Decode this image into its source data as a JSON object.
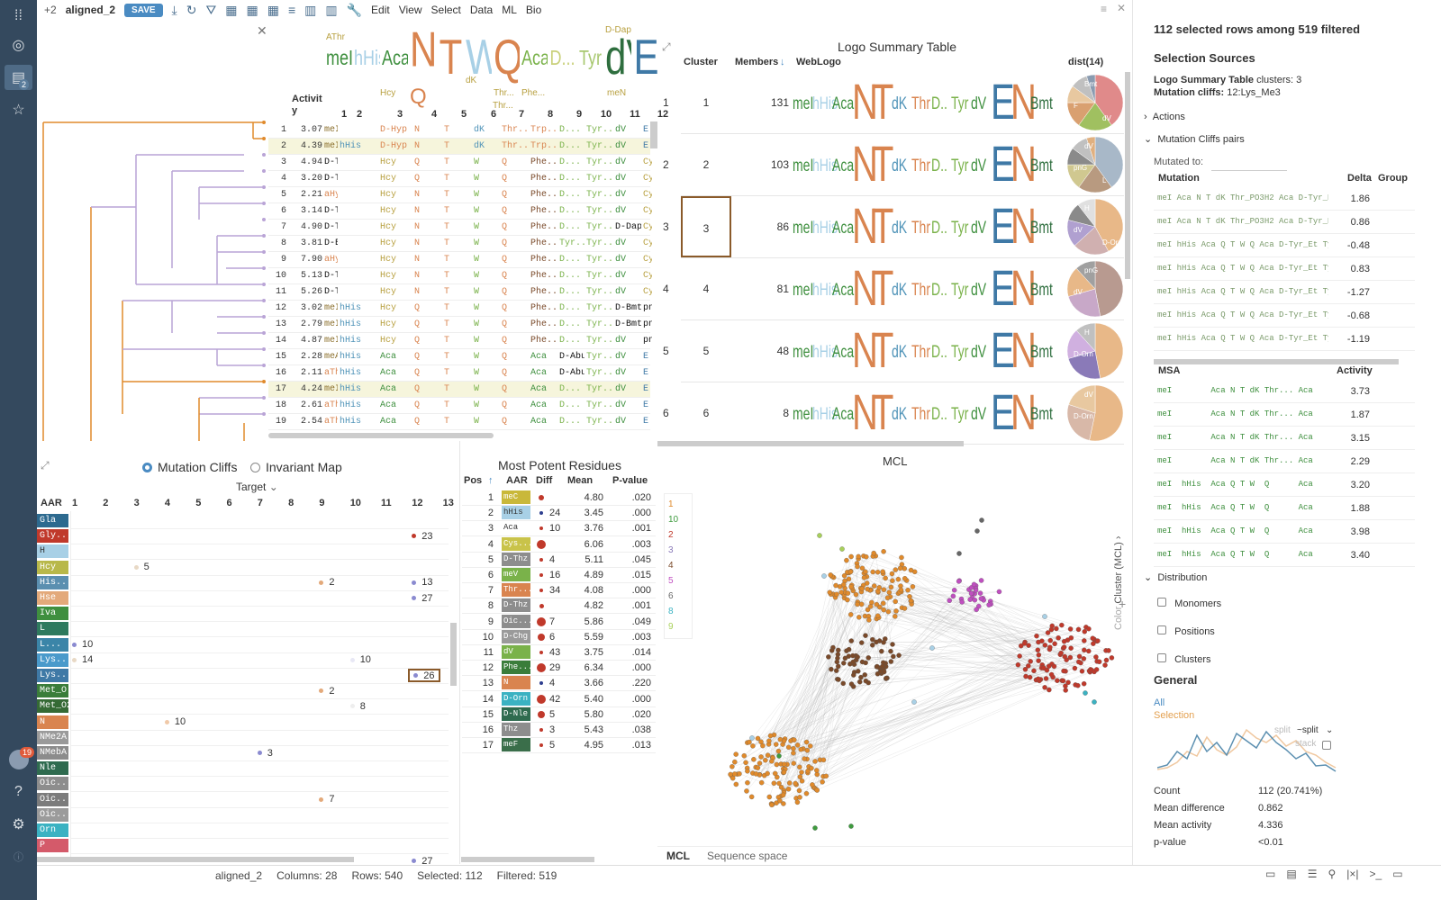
{
  "toolbar": {
    "extra_tabs": "+2",
    "table_name": "aligned_2",
    "save_label": "SAVE",
    "menus": [
      "Edit",
      "View",
      "Select",
      "Data",
      "ML",
      "Bio"
    ]
  },
  "sidebar": {
    "badge_count": "2",
    "user_badge": "19"
  },
  "grid": {
    "activity_header": "Activit y",
    "position_headers": [
      "1",
      "2",
      "3",
      "4",
      "5",
      "6",
      "7",
      "8",
      "9",
      "10",
      "11",
      "12"
    ],
    "rows": [
      {
        "n": "1",
        "act": "3.07",
        "c": [
          "meI",
          "",
          "D-Hyp",
          "N",
          "T",
          "dK",
          "Thr...",
          "Trp...",
          "D...",
          "Tyr...",
          "dV",
          "E"
        ]
      },
      {
        "n": "2",
        "act": "4.39",
        "c": [
          "meI",
          "hHis",
          "D-Hyp",
          "N",
          "T",
          "dK",
          "Thr...",
          "Trp...",
          "D...",
          "Tyr...",
          "dV",
          "E"
        ]
      },
      {
        "n": "3",
        "act": "4.94",
        "c": [
          "D-Tic",
          "",
          "Hcy",
          "Q",
          "T",
          "W",
          "Q",
          "Phe...",
          "D...",
          "Tyr...",
          "dV",
          "Cys..."
        ]
      },
      {
        "n": "4",
        "act": "3.20",
        "c": [
          "D-Tic",
          "",
          "Hcy",
          "Q",
          "T",
          "W",
          "Q",
          "Phe...",
          "D...",
          "Tyr...",
          "dV",
          "Cys..."
        ]
      },
      {
        "n": "5",
        "act": "2.21",
        "c": [
          "aHyp",
          "",
          "Hcy",
          "N",
          "T",
          "W",
          "Q",
          "Phe...",
          "D...",
          "Tyr...",
          "dV",
          "Cys..."
        ]
      },
      {
        "n": "6",
        "act": "3.14",
        "c": [
          "D-Tic",
          "",
          "Hcy",
          "N",
          "T",
          "W",
          "Q",
          "Phe...",
          "D...",
          "Tyr...",
          "dV",
          "Cys..."
        ]
      },
      {
        "n": "7",
        "act": "4.90",
        "c": [
          "D-Tic",
          "",
          "Hcy",
          "N",
          "T",
          "W",
          "Q",
          "Phe...",
          "D...",
          "Tyr...",
          "D-Dap",
          "Cys..."
        ]
      },
      {
        "n": "8",
        "act": "3.81",
        "c": [
          "D-Bmt",
          "",
          "Hcy",
          "N",
          "T",
          "W",
          "Q",
          "Phe...",
          "Tyr...",
          "Tyr...",
          "dV",
          "Cys..."
        ]
      },
      {
        "n": "9",
        "act": "7.90",
        "c": [
          "aHyp",
          "",
          "Hcy",
          "N",
          "T",
          "W",
          "Q",
          "Phe...",
          "D...",
          "Tyr...",
          "dV",
          "Cys..."
        ]
      },
      {
        "n": "10",
        "act": "5.13",
        "c": [
          "D-Tic",
          "",
          "Hcy",
          "N",
          "T",
          "W",
          "Q",
          "Phe...",
          "D...",
          "Tyr...",
          "dV",
          "Cys..."
        ]
      },
      {
        "n": "11",
        "act": "5.26",
        "c": [
          "D-Tic",
          "",
          "Hcy",
          "N",
          "T",
          "W",
          "Q",
          "Phe...",
          "D...",
          "Tyr...",
          "dV",
          "Cys..."
        ]
      },
      {
        "n": "12",
        "act": "3.02",
        "c": [
          "meI",
          "hHis",
          "Hcy",
          "Q",
          "T",
          "W",
          "Q",
          "Phe...",
          "D...",
          "Tyr...",
          "D-Bmt",
          "pnG"
        ]
      },
      {
        "n": "13",
        "act": "2.79",
        "c": [
          "meI",
          "hHis",
          "Hcy",
          "Q",
          "T",
          "W",
          "Q",
          "Phe...",
          "D...",
          "Tyr...",
          "D-Bmt",
          "pnG"
        ]
      },
      {
        "n": "14",
        "act": "4.87",
        "c": [
          "meI",
          "hHis",
          "Hcy",
          "Q",
          "T",
          "W",
          "Q",
          "Phe...",
          "D...",
          "Tyr...",
          "dV",
          "pnG"
        ]
      },
      {
        "n": "15",
        "act": "2.28",
        "c": [
          "meA",
          "hHis",
          "Aca",
          "Q",
          "T",
          "W",
          "Q",
          "Aca",
          "D-Abu",
          "Tyr...",
          "dV",
          "E"
        ]
      },
      {
        "n": "16",
        "act": "2.11",
        "c": [
          "aThr",
          "hHis",
          "Aca",
          "Q",
          "T",
          "W",
          "Q",
          "Aca",
          "D-Abu",
          "Tyr...",
          "dV",
          "E"
        ]
      },
      {
        "n": "17",
        "act": "4.24",
        "c": [
          "meI",
          "hHis",
          "Aca",
          "Q",
          "T",
          "W",
          "Q",
          "Aca",
          "D...",
          "Tyr...",
          "dV",
          "E"
        ]
      },
      {
        "n": "18",
        "act": "2.61",
        "c": [
          "aThr",
          "hHis",
          "Aca",
          "Q",
          "T",
          "W",
          "Q",
          "Aca",
          "D...",
          "Tyr...",
          "dV",
          "E"
        ]
      },
      {
        "n": "19",
        "act": "2.54",
        "c": [
          "aThr",
          "hHis",
          "Aca",
          "Q",
          "T",
          "W",
          "Q",
          "Aca",
          "D...",
          "Tyr...",
          "dV",
          "E"
        ]
      }
    ],
    "logo_letters": [
      "meI",
      "hHis",
      "Aca",
      "N",
      "T",
      "W",
      "Q",
      "Aca",
      "D...",
      "Tyr",
      "dV",
      "E"
    ],
    "logo_extras": [
      "Hcy",
      "Q",
      "dK",
      "Thr...",
      "Phe...",
      "meN",
      "Thr...",
      "D-Dap",
      "AThr"
    ]
  },
  "logo_summary": {
    "title": "Logo Summary Table",
    "headers": {
      "cluster": "Cluster",
      "members": "Members",
      "weblogo": "WebLogo",
      "dist": "dist(14)"
    },
    "rows": [
      {
        "idx": "1",
        "cluster": "1",
        "members": "131",
        "pie": [
          "Bmt",
          "F",
          "dV"
        ]
      },
      {
        "idx": "2",
        "cluster": "2",
        "members": "103",
        "pie": [
          "dV",
          "pnG",
          "L"
        ]
      },
      {
        "idx": "3",
        "cluster": "3",
        "members": "86",
        "pie": [
          "H",
          "dV",
          "D-Orn"
        ]
      },
      {
        "idx": "4",
        "cluster": "4",
        "members": "81",
        "pie": [
          "pnG",
          "dV"
        ]
      },
      {
        "idx": "5",
        "cluster": "5",
        "members": "48",
        "pie": [
          "H",
          "D-Orn"
        ]
      },
      {
        "idx": "6",
        "cluster": "6",
        "members": "8",
        "pie": [
          "dV",
          "D-Orn"
        ]
      }
    ]
  },
  "mutation_cliffs": {
    "radio_cliffs": "Mutation Cliffs",
    "radio_invariant": "Invariant Map",
    "target_label": "Target",
    "aar_header": "AAR",
    "positions": [
      "1",
      "2",
      "3",
      "4",
      "5",
      "6",
      "7",
      "8",
      "9",
      "10",
      "11",
      "12",
      "13"
    ],
    "aars": [
      {
        "name": "Gla",
        "color": "#2d6a8f"
      },
      {
        "name": "Gly...",
        "color": "#c0392b"
      },
      {
        "name": "H",
        "color": "#a8d0e6"
      },
      {
        "name": "Hcy",
        "color": "#b8b84a"
      },
      {
        "name": "His...",
        "color": "#5b8fb0"
      },
      {
        "name": "Hse",
        "color": "#e3a97a"
      },
      {
        "name": "Iva",
        "color": "#3f8f3f"
      },
      {
        "name": "L",
        "color": "#2e7a5e"
      },
      {
        "name": "L...",
        "color": "#3b85a8"
      },
      {
        "name": "Lys...",
        "color": "#4a9acb"
      },
      {
        "name": "Lys...",
        "color": "#3f79a6"
      },
      {
        "name": "Met_O",
        "color": "#3a7d3a"
      },
      {
        "name": "Met_O2",
        "color": "#356a35"
      },
      {
        "name": "N",
        "color": "#d9844f"
      },
      {
        "name": "NMe2A...",
        "color": "#9a9a9a"
      },
      {
        "name": "NMebA...",
        "color": "#8c8c8c"
      },
      {
        "name": "Nle",
        "color": "#2f6b4f"
      },
      {
        "name": "Oic...",
        "color": "#8d8d8d"
      },
      {
        "name": "Oic...",
        "color": "#7c7c7c"
      },
      {
        "name": "Oic...",
        "color": "#9b9b9b"
      },
      {
        "name": "Orn",
        "color": "#3bb2c2"
      },
      {
        "name": "P",
        "color": "#d45a6a"
      }
    ],
    "cells": [
      {
        "row": 1,
        "col": 12,
        "val": "23",
        "color": "#c0392b"
      },
      {
        "row": 3,
        "col": 3,
        "val": "5",
        "color": "#e8d9c5"
      },
      {
        "row": 4,
        "col": 9,
        "val": "2",
        "color": "#e3a97a"
      },
      {
        "row": 4,
        "col": 12,
        "val": "13",
        "color": "#8a8ad0"
      },
      {
        "row": 5,
        "col": 12,
        "val": "27",
        "color": "#8a8ad0"
      },
      {
        "row": 8,
        "col": 1,
        "val": "10",
        "color": "#8a8ad0"
      },
      {
        "row": 9,
        "col": 1,
        "val": "14",
        "color": "#e8d9c5"
      },
      {
        "row": 9,
        "col": 10,
        "val": "10",
        "color": "#e8e8f5"
      },
      {
        "row": 10,
        "col": 12,
        "val": "26",
        "color": "#8a8ad0"
      },
      {
        "row": 11,
        "col": 9,
        "val": "2",
        "color": "#e3a97a"
      },
      {
        "row": 12,
        "col": 10,
        "val": "8",
        "color": "#eee"
      },
      {
        "row": 13,
        "col": 4,
        "val": "10",
        "color": "#f0c9a8"
      },
      {
        "row": 15,
        "col": 7,
        "val": "3",
        "color": "#8a8ad0"
      },
      {
        "row": 18,
        "col": 9,
        "val": "7",
        "color": "#e3a97a"
      },
      {
        "row": 22,
        "col": 12,
        "val": "27",
        "color": "#8a8ad0"
      }
    ]
  },
  "most_potent": {
    "title": "Most Potent Residues",
    "headers": {
      "pos": "Pos",
      "aar": "AAR",
      "diff": "Diff",
      "mean": "Mean",
      "pval": "P-value"
    },
    "rows": [
      {
        "pos": "1",
        "aar": "meC",
        "aarColor": "#c9b83a",
        "dot": "#c0392b",
        "dotSize": 6,
        "diff": "",
        "mean": "4.80",
        "pval": ".020"
      },
      {
        "pos": "2",
        "aar": "hHis",
        "aarColor": "#a8d0e6",
        "dot": "#2d3e8f",
        "dotSize": 4,
        "diff": "24",
        "mean": "3.45",
        "pval": ".000"
      },
      {
        "pos": "3",
        "aar": "Aca",
        "aarColor": "#ffffff",
        "dot": "#c0392b",
        "dotSize": 4,
        "diff": "10",
        "mean": "3.76",
        "pval": ".001"
      },
      {
        "pos": "4",
        "aar": "Cys...",
        "aarColor": "#c9c34a",
        "dot": "#c0392b",
        "dotSize": 10,
        "diff": "",
        "mean": "6.06",
        "pval": ".003"
      },
      {
        "pos": "5",
        "aar": "D-Thz",
        "aarColor": "#8d8d8d",
        "dot": "#c0392b",
        "dotSize": 4,
        "diff": "4",
        "mean": "5.11",
        "pval": ".045"
      },
      {
        "pos": "6",
        "aar": "meV",
        "aarColor": "#7ab24a",
        "dot": "#c0392b",
        "dotSize": 4,
        "diff": "16",
        "mean": "4.89",
        "pval": ".015"
      },
      {
        "pos": "7",
        "aar": "Thr...",
        "aarColor": "#d9844f",
        "dot": "#c0392b",
        "dotSize": 4,
        "diff": "34",
        "mean": "4.08",
        "pval": ".000"
      },
      {
        "pos": "8",
        "aar": "D-Thz",
        "aarColor": "#8d8d8d",
        "dot": "#c0392b",
        "dotSize": 5,
        "diff": "",
        "mean": "4.82",
        "pval": ".001"
      },
      {
        "pos": "9",
        "aar": "Oic...",
        "aarColor": "#8d8d8d",
        "dot": "#c0392b",
        "dotSize": 10,
        "diff": "7",
        "mean": "5.86",
        "pval": ".049"
      },
      {
        "pos": "10",
        "aar": "D-Chg",
        "aarColor": "#9a9a9a",
        "dot": "#c0392b",
        "dotSize": 8,
        "diff": "6",
        "mean": "5.59",
        "pval": ".003"
      },
      {
        "pos": "11",
        "aar": "dV",
        "aarColor": "#7ab24a",
        "dot": "#c0392b",
        "dotSize": 4,
        "diff": "43",
        "mean": "3.75",
        "pval": ".014"
      },
      {
        "pos": "12",
        "aar": "Phe...",
        "aarColor": "#3a7d3a",
        "dot": "#c0392b",
        "dotSize": 10,
        "diff": "29",
        "mean": "6.34",
        "pval": ".000"
      },
      {
        "pos": "13",
        "aar": "N",
        "aarColor": "#d9844f",
        "dot": "#2d3e8f",
        "dotSize": 4,
        "diff": "4",
        "mean": "3.66",
        "pval": ".220"
      },
      {
        "pos": "14",
        "aar": "D-Orn",
        "aarColor": "#3bb2c2",
        "dot": "#c0392b",
        "dotSize": 10,
        "diff": "42",
        "mean": "5.40",
        "pval": ".000"
      },
      {
        "pos": "15",
        "aar": "D-Nle",
        "aarColor": "#2f6b4f",
        "dot": "#c0392b",
        "dotSize": 8,
        "diff": "5",
        "mean": "5.80",
        "pval": ".020"
      },
      {
        "pos": "16",
        "aar": "Thz",
        "aarColor": "#8d8d8d",
        "dot": "#c0392b",
        "dotSize": 4,
        "diff": "3",
        "mean": "5.43",
        "pval": ".038"
      },
      {
        "pos": "17",
        "aar": "meF",
        "aarColor": "#3a6e4a",
        "dot": "#c0392b",
        "dotSize": 4,
        "diff": "5",
        "mean": "4.95",
        "pval": ".013"
      }
    ]
  },
  "mcl": {
    "title": "MCL",
    "legend": [
      {
        "label": "1",
        "color": "#e08a2b"
      },
      {
        "label": "10",
        "color": "#3e9b3e"
      },
      {
        "label": "2",
        "color": "#c0392b"
      },
      {
        "label": "3",
        "color": "#8a7ab8"
      },
      {
        "label": "4",
        "color": "#7a4a2a"
      },
      {
        "label": "5",
        "color": "#c04fc0"
      },
      {
        "label": "6",
        "color": "#666666"
      },
      {
        "label": "8",
        "color": "#3bb2c2"
      },
      {
        "label": "9",
        "color": "#a8d05a"
      }
    ],
    "color_label": "Color",
    "cluster_label": "Cluster (MCL)",
    "tabs": [
      "MCL",
      "Sequence space"
    ]
  },
  "right_panel": {
    "heading": "112 selected rows among 519 filtered",
    "selection_sources": "Selection Sources",
    "lst_label": "Logo Summary Table",
    "lst_value": "clusters: 3",
    "mc_label": "Mutation cliffs:",
    "mc_value": "12:Lys_Me3",
    "actions": "Actions",
    "pairs_section": "Mutation Cliffs pairs",
    "mutated_to": "Mutated to:",
    "pairs_headers": {
      "mutation": "Mutation",
      "delta": "Delta",
      "group": "Group"
    },
    "pairs": [
      {
        "seq": "meI Aca N T dK Thr_PO3H2 Aca D-Tyr_E",
        "delta": "1.86"
      },
      {
        "seq": "meI Aca N T dK Thr_PO3H2 Aca D-Tyr_E",
        "delta": "0.86"
      },
      {
        "seq": "meI hHis Aca Q T W Q Aca D-Tyr_Et Tyr",
        "delta": "-0.48"
      },
      {
        "seq": "meI hHis Aca Q T W Q Aca D-Tyr_Et Tyr",
        "delta": "0.83"
      },
      {
        "seq": "meI hHis Aca Q T W Q Aca D-Tyr_Et Tyr",
        "delta": "-1.27"
      },
      {
        "seq": "meI hHis Aca Q T W Q Aca D-Tyr_Et Tyr",
        "delta": "-0.68"
      },
      {
        "seq": "meI hHis Aca Q T W Q Aca D-Tyr_Et Tyr",
        "delta": "-1.19"
      }
    ],
    "msa_headers": {
      "msa": "MSA",
      "activity": "Activity"
    },
    "msa": [
      {
        "seq": "meI        Aca N T dK Thr... Aca",
        "act": "3.73"
      },
      {
        "seq": "meI        Aca N T dK Thr... Aca",
        "act": "1.87"
      },
      {
        "seq": "meI        Aca N T dK Thr... Aca",
        "act": "3.15"
      },
      {
        "seq": "meI        Aca N T dK Thr... Aca",
        "act": "2.29"
      },
      {
        "seq": "meI  hHis  Aca Q T W  Q      Aca",
        "act": "3.20"
      },
      {
        "seq": "meI  hHis  Aca Q T W  Q      Aca",
        "act": "1.88"
      },
      {
        "seq": "meI  hHis  Aca Q T W  Q      Aca",
        "act": "3.98"
      },
      {
        "seq": "meI  hHis  Aca Q T W  Q      Aca",
        "act": "3.40"
      }
    ],
    "distribution": "Distribution",
    "checks": [
      "Monomers",
      "Positions",
      "Clusters"
    ],
    "general": "General",
    "all_label": "All",
    "selection_label": "Selection",
    "split_label": "split",
    "split_select": "~split",
    "stack_label": "stack",
    "stats": [
      {
        "label": "Count",
        "value": "112 (20.741%)"
      },
      {
        "label": "Mean difference",
        "value": "0.862"
      },
      {
        "label": "Mean activity",
        "value": "4.336"
      },
      {
        "label": "p-value",
        "value": "<0.01"
      }
    ]
  },
  "status": {
    "table": "aligned_2",
    "columns": "Columns: 28",
    "rows": "Rows: 540",
    "selected": "Selected: 112",
    "filtered": "Filtered: 519"
  }
}
